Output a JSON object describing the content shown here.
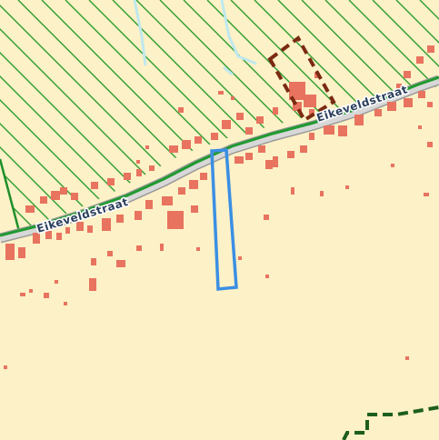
{
  "map": {
    "street_name": "Eikeveldstraat",
    "colors": {
      "background": "#fdf1c7",
      "hatch_zone_line": "#2f9e2f",
      "hatch_zone_border": "#1f8f2a",
      "road_fill": "#d8d8d8",
      "road_edge": "#9a9a9a",
      "road_green_line": "#1f9a2f",
      "buildings": "#e8735f",
      "water": "#bfe8ee",
      "parcel_highlight": "#3b8fe3",
      "dashed_zone_brown": "#7b2a12",
      "dashed_zone_green": "#1d5e1d",
      "label_text": "#2b3f5c",
      "label_halo": "#ffffff"
    },
    "layers": [
      "hatched-green-zone",
      "road",
      "buildings",
      "water-streams",
      "highlighted-parcel",
      "dashed-brown-zone",
      "dashed-green-boundary"
    ]
  }
}
